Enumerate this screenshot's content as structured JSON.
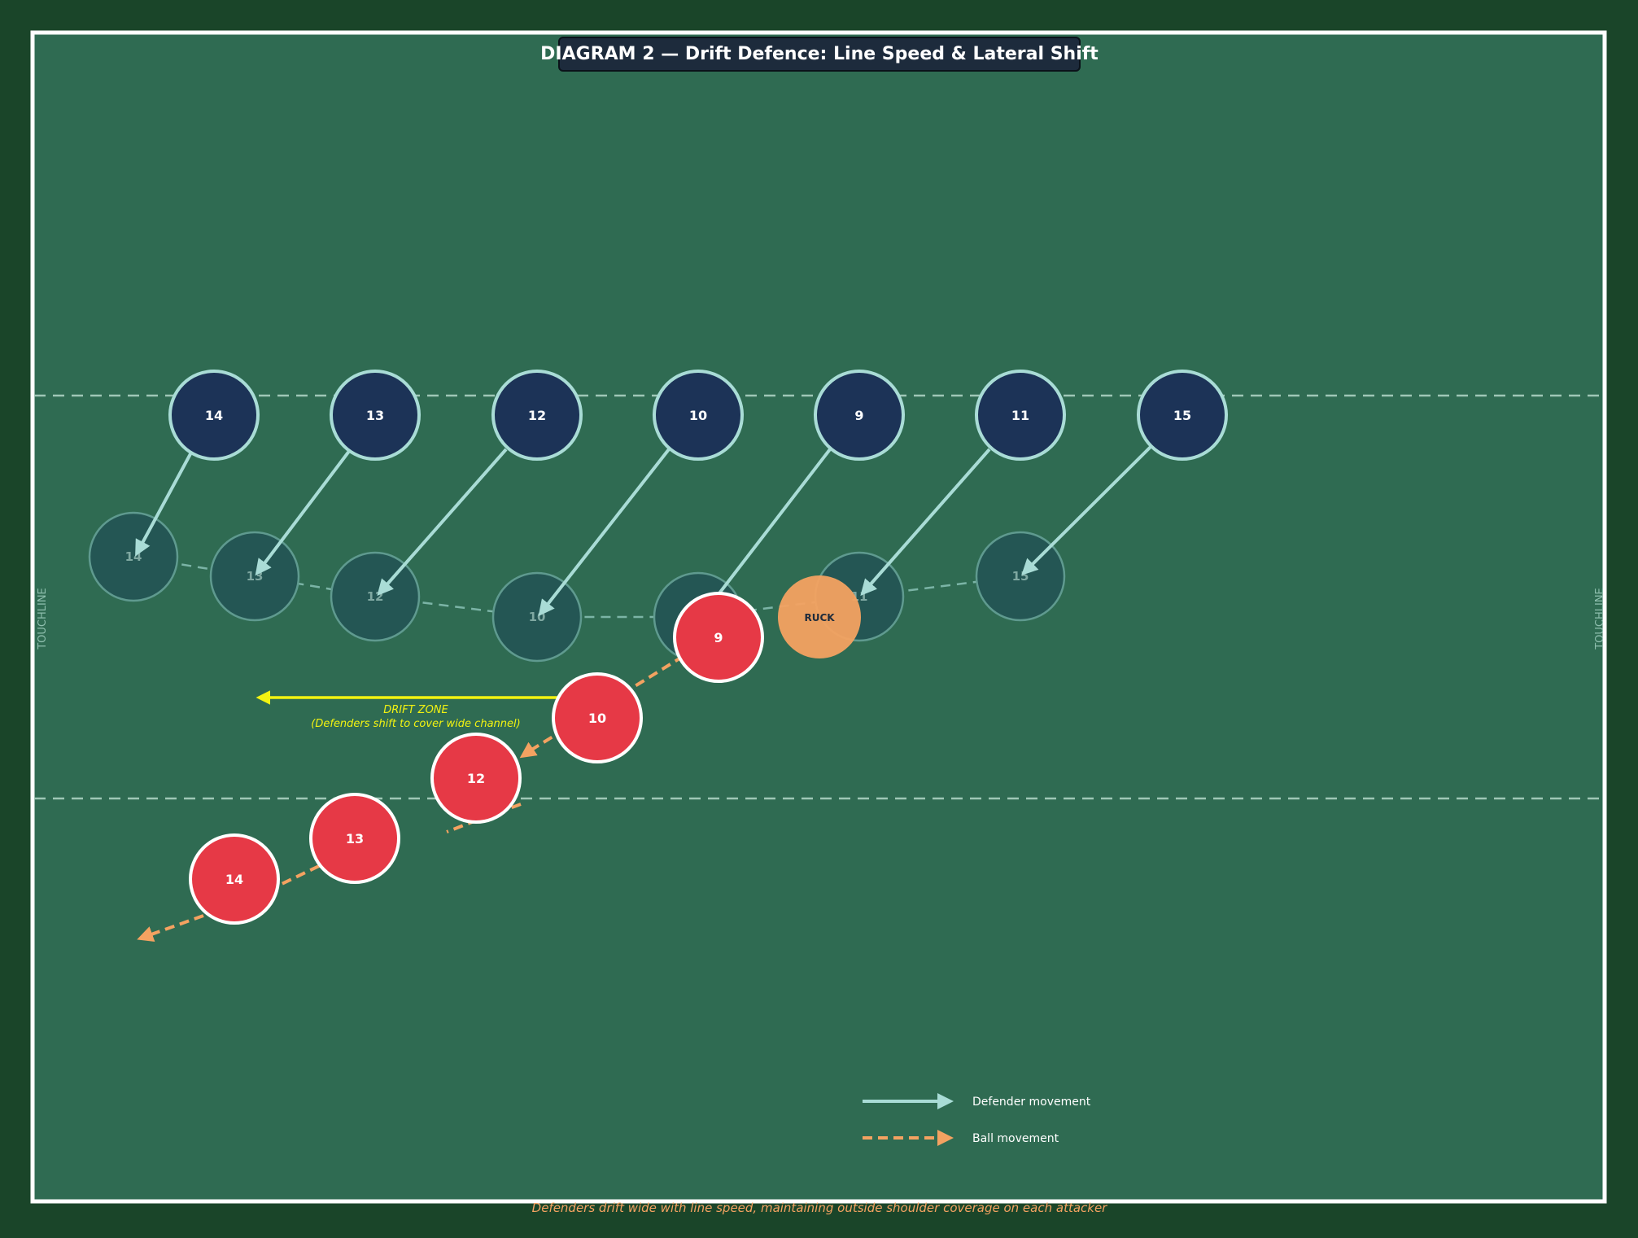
{
  "title": "DIAGRAM 2 — Drift Defence: Line Speed & Lateral Shift",
  "caption": "Defenders drift wide with line speed, maintaining outside shoulder coverage on each attacker",
  "touchline_label": "TOUCHLINE",
  "ruck_label": "RUCK",
  "drift_zone": {
    "title": "DRIFT ZONE",
    "subtitle": "(Defenders shift to cover wide channel)"
  },
  "legend": {
    "defender": "Defender movement",
    "ball": "Ball movement"
  },
  "defenders": [
    "14",
    "13",
    "12",
    "10",
    "9",
    "11",
    "15"
  ],
  "attackers": [
    "9",
    "10",
    "12",
    "13",
    "14"
  ],
  "colors": {
    "field": "#2f6b52",
    "outer": "#1a4529",
    "defender_fill": "#1c3357",
    "defender_stroke": "#a9dcd6",
    "ghost_fill": "#245654",
    "attacker_fill": "#e63946",
    "ruck_fill": "#f4a261",
    "ball_line": "#f4a261",
    "drift_arrow": "#f3f311",
    "caption": "#f4a261"
  }
}
